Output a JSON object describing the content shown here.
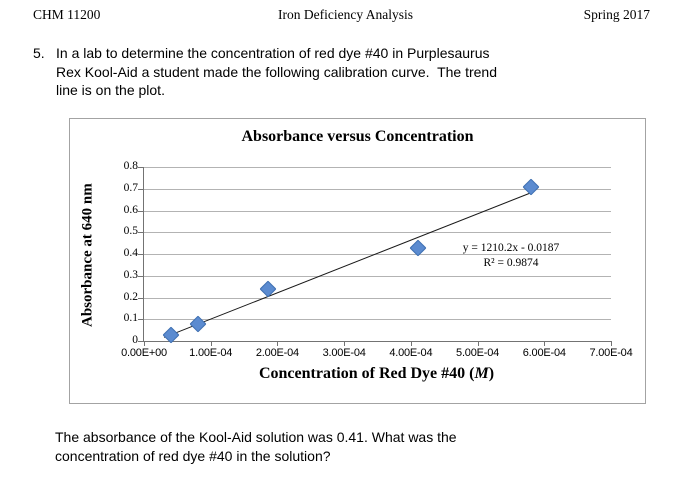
{
  "header": {
    "course": "CHM 11200",
    "title": "Iron Deficiency Analysis",
    "term": "Spring 2017"
  },
  "question": {
    "number": "5.",
    "lines": [
      "In a lab to determine the concentration of red dye #40 in Purplesaurus",
      "Rex Kool-Aid a student made the following calibration curve.  The trend",
      "line is on the plot."
    ]
  },
  "chart_data": {
    "type": "scatter",
    "title": "Absorbance versus Concentration",
    "xlabel": "Concentration of Red Dye #40 (M)",
    "xlabel_parts": {
      "prefix": "Concentration of Red Dye #40 (",
      "italic": "M",
      "suffix": ")"
    },
    "ylabel": "Absorbance at 640 nm",
    "x": [
      4e-05,
      8e-05,
      0.000185,
      0.00041,
      0.00058
    ],
    "y": [
      0.03,
      0.08,
      0.24,
      0.43,
      0.71
    ],
    "xlim": [
      0,
      0.0007
    ],
    "ylim": [
      0,
      0.8
    ],
    "x_tick_labels": [
      "0.00E+00",
      "1.00E-04",
      "2.00E-04",
      "3.00E-04",
      "4.00E-04",
      "5.00E-04",
      "6.00E-04",
      "7.00E-04"
    ],
    "y_tick_labels": [
      "0",
      "0.1",
      "0.2",
      "0.3",
      "0.4",
      "0.5",
      "0.6",
      "0.7",
      "0.8"
    ],
    "grid": true,
    "legend": "none",
    "marker": "diamond",
    "marker_color": "#5b8bd0",
    "trendline": {
      "equation": "y = 1210.2x - 0.0187",
      "r_squared": "R² = 0.9874",
      "slope": 1210.2,
      "intercept": -0.0187,
      "x_start": 3e-05,
      "x_end": 0.00058
    }
  },
  "footer_question_lines": [
    "The absorbance of the Kool-Aid solution was 0.41. What was the",
    "concentration of red dye #40 in the solution?"
  ]
}
